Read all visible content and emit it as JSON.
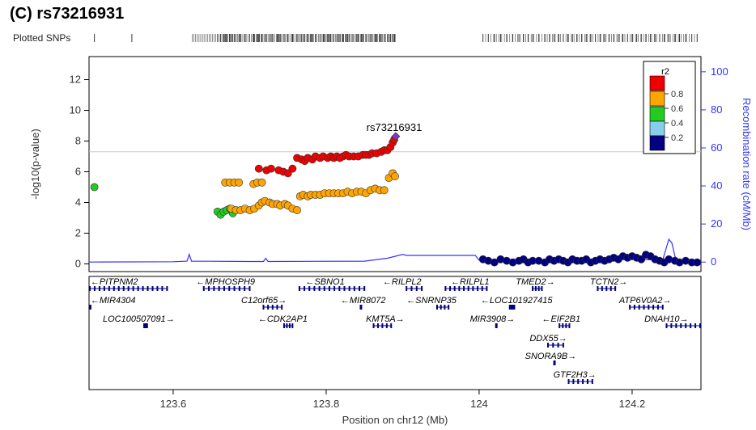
{
  "panel_title": "(C) rs73216931",
  "plotted_snps_label": "Plotted SNPs",
  "colors": {
    "recomb_line": "#3333ff",
    "r2_08": "#ee0000",
    "r2_06": "#ffa500",
    "r2_04": "#22cc22",
    "r2_02": "#87ceeb",
    "r2_00": "#000080",
    "lead": "#7a3fb5",
    "gene": "#000080"
  },
  "chart_data": {
    "type": "scatter",
    "title": "rs73216931",
    "xlabel": "Position on chr12 (Mb)",
    "ylabel": "-log10(p-value)",
    "ylabel_right": "Recombination rate (cM/Mb)",
    "xlim": [
      123.49,
      124.29
    ],
    "ylim": [
      -0.5,
      13.5
    ],
    "y2lim": [
      -5,
      108
    ],
    "x_ticks": [
      "123.6",
      "123.8",
      "124",
      "124.2"
    ],
    "y_ticks": [
      "0",
      "2",
      "4",
      "6",
      "8",
      "10",
      "12"
    ],
    "y2_ticks": [
      "0",
      "20",
      "40",
      "60",
      "80",
      "100"
    ],
    "significance_line": 7.3,
    "lead_snp": {
      "label": "rs73216931",
      "x": 123.891,
      "y": 8.3
    },
    "legend": {
      "title": "r2",
      "labels": [
        "0.8",
        "0.6",
        "0.4",
        "0.2"
      ],
      "placement": "top-right"
    },
    "series": [
      {
        "name": "0.8",
        "points": [
          [
            123.712,
            6.2
          ],
          [
            123.722,
            6.1
          ],
          [
            123.728,
            6.2
          ],
          [
            123.738,
            6.1
          ],
          [
            123.744,
            6.0
          ],
          [
            123.75,
            5.9
          ],
          [
            123.756,
            6.2
          ],
          [
            123.762,
            6.9
          ],
          [
            123.768,
            6.8
          ],
          [
            123.772,
            6.7
          ],
          [
            123.776,
            6.9
          ],
          [
            123.782,
            6.8
          ],
          [
            123.786,
            7.0
          ],
          [
            123.792,
            6.9
          ],
          [
            123.796,
            7.0
          ],
          [
            123.802,
            6.9
          ],
          [
            123.806,
            7.0
          ],
          [
            123.81,
            6.9
          ],
          [
            123.814,
            7.0
          ],
          [
            123.818,
            6.9
          ],
          [
            123.822,
            7.0
          ],
          [
            123.826,
            7.1
          ],
          [
            123.83,
            7.0
          ],
          [
            123.836,
            7.0
          ],
          [
            123.842,
            7.0
          ],
          [
            123.848,
            7.1
          ],
          [
            123.852,
            7.1
          ],
          [
            123.856,
            7.1
          ],
          [
            123.86,
            7.2
          ],
          [
            123.866,
            7.2
          ],
          [
            123.872,
            7.3
          ],
          [
            123.876,
            7.4
          ],
          [
            123.88,
            7.4
          ],
          [
            123.884,
            7.6
          ],
          [
            123.887,
            7.9
          ],
          [
            123.889,
            8.1
          ]
        ]
      },
      {
        "name": "0.6",
        "points": [
          [
            123.668,
            5.3
          ],
          [
            123.674,
            5.3
          ],
          [
            123.68,
            5.3
          ],
          [
            123.686,
            5.3
          ],
          [
            123.705,
            5.2
          ],
          [
            123.71,
            5.3
          ],
          [
            123.716,
            5.3
          ],
          [
            123.676,
            3.6
          ],
          [
            123.682,
            3.5
          ],
          [
            123.688,
            3.5
          ],
          [
            123.694,
            3.6
          ],
          [
            123.7,
            3.5
          ],
          [
            123.706,
            3.6
          ],
          [
            123.712,
            3.8
          ],
          [
            123.716,
            4.0
          ],
          [
            123.72,
            4.1
          ],
          [
            123.726,
            4.0
          ],
          [
            123.73,
            3.9
          ],
          [
            123.736,
            3.9
          ],
          [
            123.74,
            3.8
          ],
          [
            123.746,
            3.9
          ],
          [
            123.75,
            3.8
          ],
          [
            123.756,
            3.6
          ],
          [
            123.762,
            3.5
          ],
          [
            123.766,
            4.4
          ],
          [
            123.77,
            4.5
          ],
          [
            123.776,
            4.4
          ],
          [
            123.78,
            4.5
          ],
          [
            123.786,
            4.5
          ],
          [
            123.792,
            4.5
          ],
          [
            123.798,
            4.6
          ],
          [
            123.804,
            4.6
          ],
          [
            123.81,
            4.6
          ],
          [
            123.816,
            4.6
          ],
          [
            123.822,
            4.6
          ],
          [
            123.828,
            4.7
          ],
          [
            123.834,
            4.6
          ],
          [
            123.84,
            4.7
          ],
          [
            123.846,
            4.7
          ],
          [
            123.852,
            4.6
          ],
          [
            123.858,
            4.8
          ],
          [
            123.864,
            4.9
          ],
          [
            123.87,
            4.8
          ],
          [
            123.876,
            4.8
          ],
          [
            123.882,
            5.6
          ],
          [
            123.887,
            5.9
          ],
          [
            123.89,
            5.7
          ]
        ]
      },
      {
        "name": "0.4",
        "points": [
          [
            123.497,
            5.0
          ],
          [
            123.658,
            3.4
          ],
          [
            123.662,
            3.2
          ],
          [
            123.666,
            3.4
          ],
          [
            123.67,
            3.5
          ],
          [
            123.674,
            3.6
          ],
          [
            123.678,
            3.3
          ]
        ]
      },
      {
        "name": "0.2",
        "points": []
      },
      {
        "name": "0.0",
        "points": [
          [
            124.005,
            0.3
          ],
          [
            124.012,
            0.2
          ],
          [
            124.02,
            0.1
          ],
          [
            124.028,
            0.3
          ],
          [
            124.036,
            0.2
          ],
          [
            124.044,
            0.1
          ],
          [
            124.052,
            0.2
          ],
          [
            124.058,
            0.3
          ],
          [
            124.064,
            0.1
          ],
          [
            124.07,
            0.2
          ],
          [
            124.078,
            0.2
          ],
          [
            124.086,
            0.1
          ],
          [
            124.092,
            0.3
          ],
          [
            124.098,
            0.2
          ],
          [
            124.104,
            0.3
          ],
          [
            124.11,
            0.2
          ],
          [
            124.116,
            0.1
          ],
          [
            124.122,
            0.3
          ],
          [
            124.128,
            0.2
          ],
          [
            124.134,
            0.2
          ],
          [
            124.14,
            0.3
          ],
          [
            124.146,
            0.1
          ],
          [
            124.152,
            0.2
          ],
          [
            124.158,
            0.3
          ],
          [
            124.164,
            0.2
          ],
          [
            124.17,
            0.3
          ],
          [
            124.176,
            0.4
          ],
          [
            124.182,
            0.3
          ],
          [
            124.188,
            0.5
          ],
          [
            124.194,
            0.4
          ],
          [
            124.2,
            0.5
          ],
          [
            124.206,
            0.4
          ],
          [
            124.212,
            0.3
          ],
          [
            124.218,
            0.6
          ],
          [
            124.224,
            0.5
          ],
          [
            124.23,
            0.3
          ],
          [
            124.236,
            0.2
          ],
          [
            124.242,
            0.1
          ],
          [
            124.248,
            0.3
          ],
          [
            124.256,
            0.2
          ],
          [
            124.262,
            0.1
          ],
          [
            124.27,
            0.2
          ],
          [
            124.278,
            0.1
          ],
          [
            124.285,
            0.1
          ]
        ]
      }
    ],
    "recombination": [
      [
        123.49,
        0
      ],
      [
        123.6,
        0.2
      ],
      [
        123.618,
        0.5
      ],
      [
        123.621,
        4
      ],
      [
        123.624,
        0.5
      ],
      [
        123.7,
        0.3
      ],
      [
        123.718,
        0.3
      ],
      [
        123.721,
        2
      ],
      [
        123.724,
        0.3
      ],
      [
        123.85,
        0.5
      ],
      [
        123.88,
        2
      ],
      [
        123.9,
        4
      ],
      [
        123.905,
        3.5
      ],
      [
        123.995,
        3.5
      ],
      [
        124.0,
        1
      ],
      [
        124.04,
        0.3
      ],
      [
        124.06,
        0.5
      ],
      [
        124.1,
        0.8
      ],
      [
        124.14,
        1
      ],
      [
        124.2,
        1.5
      ],
      [
        124.24,
        1
      ],
      [
        124.248,
        12
      ],
      [
        124.252,
        10
      ],
      [
        124.256,
        3
      ],
      [
        124.26,
        1
      ],
      [
        124.29,
        0.5
      ]
    ],
    "genes": {
      "row1": [
        {
          "name": "PITPNM2",
          "dir": "left",
          "x0": 123.49,
          "x1": 123.592,
          "lx": 123.492
        },
        {
          "name": "MPHOSPH9",
          "dir": "left",
          "x0": 123.64,
          "x1": 123.7,
          "lx": 123.63
        },
        {
          "name": "SBNO1",
          "dir": "left",
          "x0": 123.765,
          "x1": 123.85,
          "lx": 123.773
        },
        {
          "name": "RILPL2",
          "dir": "left",
          "x0": 123.905,
          "x1": 123.925,
          "lx": 123.874
        },
        {
          "name": "RILPL1",
          "dir": "left",
          "x0": 123.956,
          "x1": 124.01,
          "lx": 123.963
        },
        {
          "name": "TMED2",
          "dir": "right",
          "x0": 124.07,
          "x1": 124.082,
          "lx": 124.048
        },
        {
          "name": "TCTN2",
          "dir": "right",
          "x0": 124.155,
          "x1": 124.178,
          "lx": 124.145
        }
      ],
      "row2": [
        {
          "name": "MIR4304",
          "dir": "left",
          "x0": 123.491,
          "x1": 123.492,
          "lx": 123.492
        },
        {
          "name": "C12orf65",
          "dir": "right",
          "x0": 123.718,
          "x1": 123.742,
          "lx": 123.689
        },
        {
          "name": "MIR8072",
          "dir": "left",
          "x0": 123.845,
          "x1": 123.846,
          "lx": 123.819
        },
        {
          "name": "SNRNP35",
          "dir": "left",
          "x0": 123.945,
          "x1": 123.96,
          "lx": 123.905
        },
        {
          "name": "LOC101927415",
          "dir": "left",
          "x0": 124.04,
          "x1": 124.046,
          "lx": 124.002
        },
        {
          "name": "ATP6V0A2",
          "dir": "right",
          "x0": 124.197,
          "x1": 124.24,
          "lx": 124.183
        }
      ],
      "row3": [
        {
          "name": "LOC100507091",
          "dir": "right",
          "x0": 123.562,
          "x1": 123.566,
          "lx": 123.508
        },
        {
          "name": "CDK2AP1",
          "dir": "left",
          "x0": 123.745,
          "x1": 123.756,
          "lx": 123.711
        },
        {
          "name": "KMT5A",
          "dir": "right",
          "x0": 123.862,
          "x1": 123.885,
          "lx": 123.852
        },
        {
          "name": "MIR3908",
          "dir": "right",
          "x0": 124.022,
          "x1": 124.023,
          "lx": 123.988
        },
        {
          "name": "EIF2B1",
          "dir": "left",
          "x0": 124.105,
          "x1": 124.118,
          "lx": 124.082
        },
        {
          "name": "DNAH10",
          "dir": "right",
          "x0": 124.245,
          "x1": 124.292,
          "lx": 124.216
        }
      ],
      "row4": [
        {
          "name": "DDX55",
          "dir": "right",
          "x0": 124.09,
          "x1": 124.11,
          "lx": 124.066
        }
      ],
      "row5": [
        {
          "name": "SNORA9B",
          "dir": "right",
          "x0": 124.098,
          "x1": 124.099,
          "lx": 124.06
        }
      ],
      "row6": [
        {
          "name": "GTF2H3",
          "dir": "right",
          "x0": 124.117,
          "x1": 124.148,
          "lx": 124.097
        }
      ]
    }
  }
}
